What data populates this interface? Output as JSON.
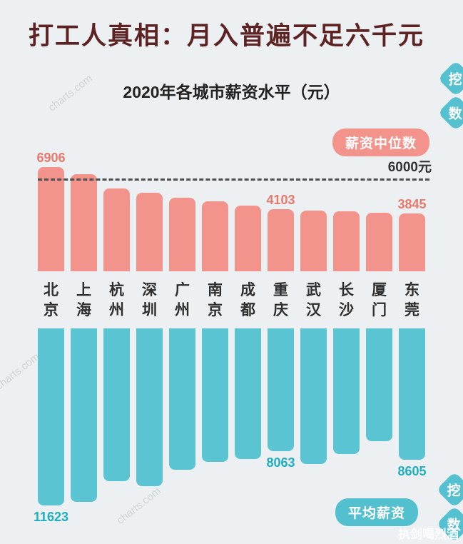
{
  "page": {
    "title": "打工人真相：月入普遍不足六千元",
    "subtitle": "2020年各城市薪资水平（元）",
    "median_badge": "薪资中位数",
    "average_badge": "平均薪资",
    "signature_watermark": "执剑喝烈酒",
    "site_watermark": "charts.com",
    "logo_chars": [
      "挖",
      "数"
    ]
  },
  "colors": {
    "background": "#edf0f2",
    "title": "#5d2222",
    "median_bar": "#f2948c",
    "median_label": "#e7796d",
    "average_bar": "#5ac4d3",
    "average_label": "#1fadc2",
    "badge_median_bg": "#f2948c",
    "badge_average_bg": "#52c0cf",
    "badge_text": "#ffffff",
    "threshold_line": "#4f4f4f"
  },
  "chart_data": {
    "type": "bar",
    "title": "2020年各城市薪资水平（元）",
    "orientation": "diverging-vertical",
    "categories": [
      "北京",
      "上海",
      "杭州",
      "深圳",
      "广州",
      "南京",
      "成都",
      "重庆",
      "武汉",
      "长沙",
      "厦门",
      "东莞"
    ],
    "series": [
      {
        "name": "薪资中位数",
        "direction": "up",
        "color": "#f2948c",
        "values": [
          6906,
          6420,
          5470,
          5190,
          4870,
          4630,
          4360,
          4103,
          4010,
          3950,
          3890,
          3845
        ],
        "labeled_points": [
          {
            "index": 0,
            "text": "6906"
          },
          {
            "index": 7,
            "text": "4103"
          },
          {
            "index": 11,
            "text": "3845"
          }
        ]
      },
      {
        "name": "平均薪资",
        "direction": "down",
        "color": "#5ac4d3",
        "values": [
          11623,
          11380,
          10020,
          10350,
          9280,
          8760,
          8600,
          8063,
          8920,
          8230,
          7420,
          8605
        ],
        "labeled_points": [
          {
            "index": 0,
            "text": "11623"
          },
          {
            "index": 7,
            "text": "8063"
          },
          {
            "index": 11,
            "text": "8605"
          }
        ]
      }
    ],
    "threshold": {
      "value": 6000,
      "label": "6000元"
    },
    "legend_position": "badges-right",
    "grid": false
  }
}
